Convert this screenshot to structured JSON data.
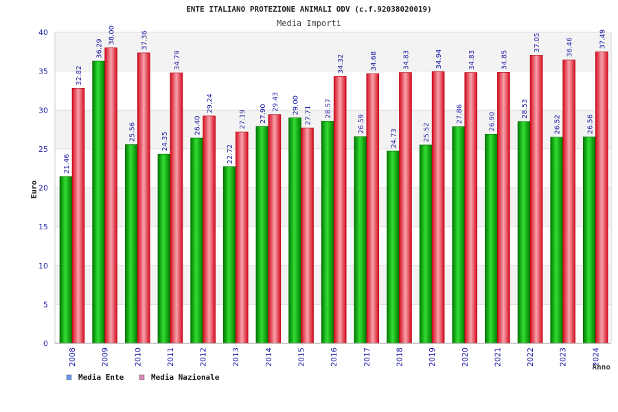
{
  "chart_data": {
    "type": "bar",
    "title": "ENTE ITALIANO PROTEZIONE ANIMALI ODV (c.f.92038020019)",
    "subtitle": "Media Importi",
    "xlabel": "Anno",
    "ylabel": "Euro",
    "ylim": [
      0,
      40
    ],
    "yticks": [
      0,
      5,
      10,
      15,
      20,
      25,
      30,
      35,
      40
    ],
    "grid": true,
    "legend_position": "bottom-left",
    "categories": [
      "2008",
      "2009",
      "2010",
      "2011",
      "2012",
      "2013",
      "2014",
      "2015",
      "2016",
      "2017",
      "2018",
      "2019",
      "2020",
      "2021",
      "2022",
      "2023",
      "2024"
    ],
    "series": [
      {
        "name": "Media Ente",
        "color": "#00b000",
        "legend_color": "#6699ee",
        "values": [
          21.46,
          36.29,
          25.56,
          24.35,
          26.4,
          22.72,
          27.9,
          29.0,
          28.57,
          26.59,
          24.73,
          25.52,
          27.86,
          26.9,
          28.53,
          26.52,
          26.56
        ],
        "labels": [
          "21.46",
          "36.29",
          "25.56",
          "24.35",
          "26.40",
          "22.72",
          "27.90",
          "29.00",
          "28.57",
          "26.59",
          "24.73",
          "25.52",
          "27.86",
          "26.90",
          "28.53",
          "26.52",
          "26.56"
        ]
      },
      {
        "name": "Media Nazionale",
        "color": "#e8202c",
        "legend_color": "#dd88bb",
        "values": [
          32.82,
          38.0,
          37.36,
          34.79,
          29.24,
          27.19,
          29.43,
          27.71,
          34.32,
          34.68,
          34.83,
          34.94,
          34.83,
          34.85,
          37.05,
          36.46,
          37.49
        ],
        "labels": [
          "32.82",
          "38.00",
          "37.36",
          "34.79",
          "29.24",
          "27.19",
          "29.43",
          "27.71",
          "34.32",
          "34.68",
          "34.83",
          "34.94",
          "34.83",
          "34.85",
          "37.05",
          "36.46",
          "37.49"
        ]
      }
    ]
  }
}
